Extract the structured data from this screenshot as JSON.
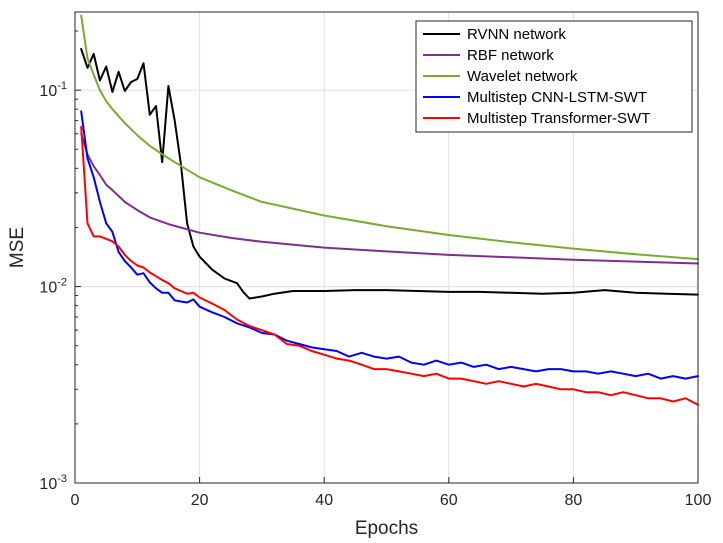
{
  "chart_data": {
    "type": "line",
    "title": "",
    "xlabel": "Epochs",
    "ylabel": "MSE",
    "xlim": [
      0,
      100
    ],
    "ylim": [
      0.001,
      0.25
    ],
    "yscale": "log",
    "grid": true,
    "legend_position": "top-right",
    "x_ticks": [
      0,
      20,
      40,
      60,
      80,
      100
    ],
    "x_tick_labels": [
      "0",
      "20",
      "40",
      "60",
      "80",
      "100"
    ],
    "y_ticks": [
      0.001,
      0.01,
      0.1
    ],
    "y_tick_labels": [
      {
        "base": "10",
        "exp": "-3"
      },
      {
        "base": "10",
        "exp": "-2"
      },
      {
        "base": "10",
        "exp": "-1"
      }
    ],
    "series": [
      {
        "name": "RVNN network",
        "color": "#000000",
        "x": [
          1,
          2,
          3,
          4,
          5,
          6,
          7,
          8,
          9,
          10,
          11,
          12,
          13,
          14,
          15,
          16,
          17,
          18,
          19,
          20,
          22,
          24,
          26,
          27,
          28,
          30,
          32,
          35,
          40,
          45,
          50,
          55,
          60,
          65,
          70,
          75,
          80,
          85,
          90,
          95,
          100
        ],
        "y": [
          0.162,
          0.13,
          0.153,
          0.112,
          0.132,
          0.098,
          0.124,
          0.099,
          0.11,
          0.114,
          0.137,
          0.075,
          0.083,
          0.043,
          0.105,
          0.07,
          0.042,
          0.021,
          0.016,
          0.0142,
          0.0122,
          0.011,
          0.0104,
          0.0094,
          0.0087,
          0.0089,
          0.0092,
          0.0095,
          0.0095,
          0.0096,
          0.0096,
          0.0095,
          0.0094,
          0.0094,
          0.0093,
          0.0092,
          0.0093,
          0.0096,
          0.0093,
          0.0092,
          0.0091
        ]
      },
      {
        "name": "RBF network",
        "color": "#7E2F8E",
        "x": [
          1,
          2,
          3,
          4,
          5,
          6,
          8,
          10,
          12,
          15,
          20,
          25,
          30,
          40,
          50,
          60,
          70,
          80,
          90,
          100
        ],
        "y": [
          0.06,
          0.047,
          0.041,
          0.037,
          0.033,
          0.031,
          0.027,
          0.0245,
          0.0225,
          0.0208,
          0.0188,
          0.0177,
          0.0169,
          0.0158,
          0.0151,
          0.0145,
          0.0141,
          0.0137,
          0.0134,
          0.0131
        ]
      },
      {
        "name": "Wavelet network",
        "color": "#77AC30",
        "x": [
          1,
          2,
          3,
          4,
          5,
          6,
          8,
          10,
          12,
          15,
          20,
          25,
          30,
          40,
          50,
          60,
          70,
          80,
          90,
          100
        ],
        "y": [
          0.24,
          0.145,
          0.12,
          0.1,
          0.088,
          0.08,
          0.068,
          0.059,
          0.052,
          0.045,
          0.036,
          0.031,
          0.027,
          0.023,
          0.0203,
          0.0183,
          0.0168,
          0.0156,
          0.0146,
          0.0138
        ]
      },
      {
        "name": "Multistep CNN-LSTM-SWT",
        "color": "#0000FF",
        "x": [
          1,
          2,
          3,
          4,
          5,
          6,
          7,
          8,
          9,
          10,
          11,
          12,
          13,
          14,
          15,
          16,
          17,
          18,
          19,
          20,
          22,
          24,
          26,
          28,
          30,
          32,
          34,
          36,
          38,
          40,
          42,
          44,
          46,
          48,
          50,
          52,
          54,
          56,
          58,
          60,
          62,
          64,
          66,
          68,
          70,
          72,
          74,
          76,
          78,
          80,
          82,
          84,
          86,
          88,
          90,
          92,
          94,
          96,
          98,
          100
        ],
        "y": [
          0.078,
          0.045,
          0.036,
          0.027,
          0.021,
          0.019,
          0.015,
          0.0135,
          0.0125,
          0.0115,
          0.0117,
          0.0105,
          0.0098,
          0.0093,
          0.0093,
          0.0085,
          0.0084,
          0.0083,
          0.0086,
          0.0079,
          0.0074,
          0.007,
          0.0065,
          0.0062,
          0.0058,
          0.0057,
          0.0053,
          0.0051,
          0.0049,
          0.0048,
          0.0047,
          0.0044,
          0.0046,
          0.0044,
          0.0043,
          0.0044,
          0.0041,
          0.004,
          0.0042,
          0.004,
          0.0041,
          0.0039,
          0.004,
          0.0038,
          0.0039,
          0.0038,
          0.0037,
          0.0038,
          0.0038,
          0.0037,
          0.0037,
          0.0036,
          0.0037,
          0.0036,
          0.0035,
          0.0036,
          0.0034,
          0.0035,
          0.0034,
          0.0035
        ]
      },
      {
        "name": "Multistep Transformer-SWT",
        "color": "#FF0000",
        "x": [
          1,
          2,
          3,
          4,
          5,
          6,
          7,
          8,
          9,
          10,
          11,
          12,
          13,
          14,
          15,
          16,
          17,
          18,
          19,
          20,
          22,
          24,
          26,
          28,
          30,
          32,
          34,
          36,
          38,
          40,
          42,
          44,
          46,
          48,
          50,
          52,
          54,
          56,
          58,
          60,
          62,
          64,
          66,
          68,
          70,
          72,
          74,
          76,
          78,
          80,
          82,
          84,
          86,
          88,
          90,
          92,
          94,
          96,
          98,
          100
        ],
        "y": [
          0.065,
          0.021,
          0.018,
          0.018,
          0.0175,
          0.017,
          0.016,
          0.0145,
          0.0135,
          0.0128,
          0.0125,
          0.0118,
          0.0113,
          0.0108,
          0.0104,
          0.0098,
          0.0095,
          0.0092,
          0.0093,
          0.0088,
          0.0082,
          0.0076,
          0.0068,
          0.0063,
          0.006,
          0.0057,
          0.0051,
          0.005,
          0.0047,
          0.0045,
          0.0043,
          0.0042,
          0.004,
          0.0038,
          0.0038,
          0.0037,
          0.0036,
          0.0035,
          0.0036,
          0.0034,
          0.0034,
          0.0033,
          0.0032,
          0.0033,
          0.0032,
          0.0031,
          0.0032,
          0.0031,
          0.003,
          0.003,
          0.0029,
          0.0029,
          0.0028,
          0.0029,
          0.0028,
          0.0027,
          0.0027,
          0.0026,
          0.0027,
          0.0025
        ]
      }
    ]
  }
}
